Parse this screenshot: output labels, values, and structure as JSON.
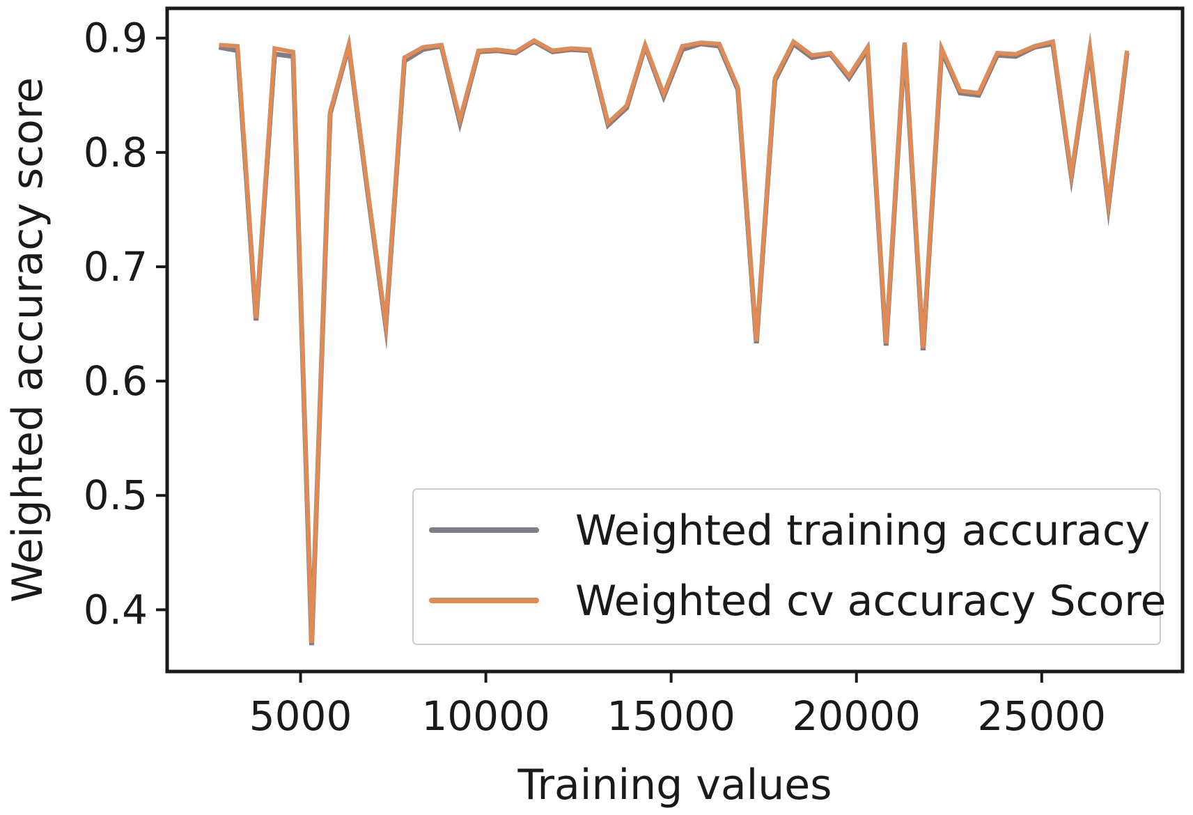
{
  "chart_data": {
    "type": "line",
    "title": "",
    "xlabel": "Training values",
    "ylabel": "Weighted accuracy score",
    "xlim": [
      1400,
      28800
    ],
    "ylim": [
      0.346,
      0.926
    ],
    "xticks": [
      5000,
      10000,
      15000,
      20000,
      25000
    ],
    "yticks": [
      0.4,
      0.5,
      0.6,
      0.7,
      0.8,
      0.9
    ],
    "xtick_labels": [
      "5000",
      "10000",
      "15000",
      "20000",
      "25000"
    ],
    "ytick_labels": [
      "0.4",
      "0.5",
      "0.6",
      "0.7",
      "0.8",
      "0.9"
    ],
    "grid": false,
    "legend_position": "lower-right",
    "series": [
      {
        "name": "Weighted training accuracy",
        "color": "#7f7f8a",
        "x": [
          2800,
          3300,
          3800,
          4300,
          4800,
          5300,
          5800,
          6300,
          6800,
          7300,
          7800,
          8300,
          8800,
          9300,
          9800,
          10300,
          10800,
          11300,
          11800,
          12300,
          12800,
          13300,
          13800,
          14300,
          14800,
          15300,
          15800,
          16300,
          16800,
          17300,
          17800,
          18300,
          18800,
          19300,
          19800,
          20300,
          20800,
          21300,
          21800,
          22300,
          22800,
          23300,
          23800,
          24300,
          24800,
          25300,
          25800,
          26300,
          26800,
          27300
        ],
        "values": [
          0.892,
          0.889,
          0.653,
          0.886,
          0.884,
          0.369,
          0.834,
          0.893,
          0.768,
          0.648,
          0.88,
          0.89,
          0.893,
          0.826,
          0.888,
          0.889,
          0.887,
          0.897,
          0.888,
          0.89,
          0.889,
          0.824,
          0.839,
          0.893,
          0.849,
          0.89,
          0.895,
          0.893,
          0.855,
          0.633,
          0.863,
          0.895,
          0.883,
          0.886,
          0.865,
          0.89,
          0.631,
          0.894,
          0.627,
          0.889,
          0.852,
          0.85,
          0.885,
          0.884,
          0.892,
          0.895,
          0.779,
          0.889,
          0.753,
          0.887
        ]
      },
      {
        "name": "Weighted cv accuracy Score",
        "color": "#e08a55",
        "x": [
          2800,
          3300,
          3800,
          4300,
          4800,
          5300,
          5800,
          6300,
          6800,
          7300,
          7800,
          8300,
          8800,
          9300,
          9800,
          10300,
          10800,
          11300,
          11800,
          12300,
          12800,
          13300,
          13800,
          14300,
          14800,
          15300,
          15800,
          16300,
          16800,
          17300,
          17800,
          18300,
          18800,
          19300,
          19800,
          20300,
          20800,
          21300,
          21800,
          22300,
          22800,
          23300,
          23800,
          24300,
          24800,
          25300,
          25800,
          26300,
          26800,
          27300
        ],
        "values": [
          0.894,
          0.893,
          0.655,
          0.891,
          0.888,
          0.371,
          0.836,
          0.894,
          0.77,
          0.65,
          0.883,
          0.892,
          0.894,
          0.829,
          0.889,
          0.89,
          0.888,
          0.898,
          0.889,
          0.891,
          0.89,
          0.826,
          0.841,
          0.894,
          0.851,
          0.893,
          0.896,
          0.895,
          0.857,
          0.635,
          0.865,
          0.897,
          0.885,
          0.887,
          0.867,
          0.892,
          0.633,
          0.896,
          0.629,
          0.891,
          0.854,
          0.852,
          0.887,
          0.886,
          0.893,
          0.897,
          0.781,
          0.891,
          0.755,
          0.889
        ]
      }
    ]
  }
}
